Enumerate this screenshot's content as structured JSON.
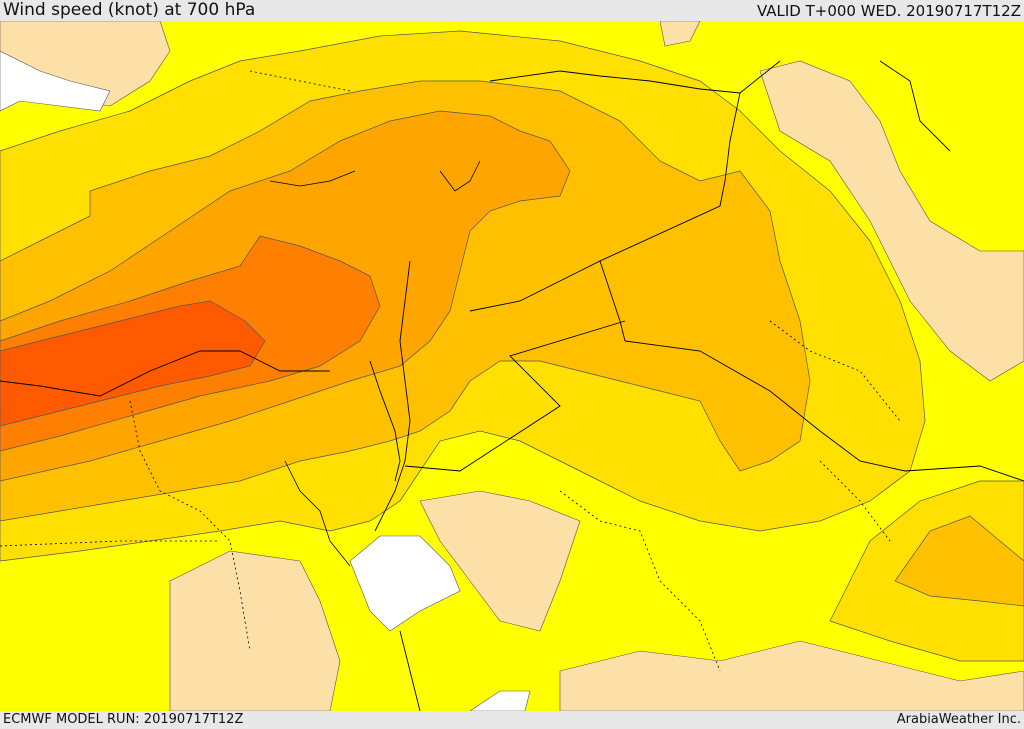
{
  "header": {
    "title": "Wind speed (knot) at 700 hPa",
    "valid": "VALID T+000 WED. 20190717T12Z"
  },
  "footer": {
    "model_run": "ECMWF MODEL RUN: 20190717T12Z",
    "credit": "ArabiaWeather Inc."
  },
  "map": {
    "colors": {
      "band_weakest": "#fde0a8",
      "band_light": "#ffff00",
      "band_low": "#ffe000",
      "band_mid": "#ffc000",
      "band_high": "#ffa500",
      "band_strong": "#ff8000",
      "band_max": "#ff5a00",
      "sea_unshaded": "#ffffff",
      "contour": "#555555",
      "border": "#000000"
    }
  }
}
